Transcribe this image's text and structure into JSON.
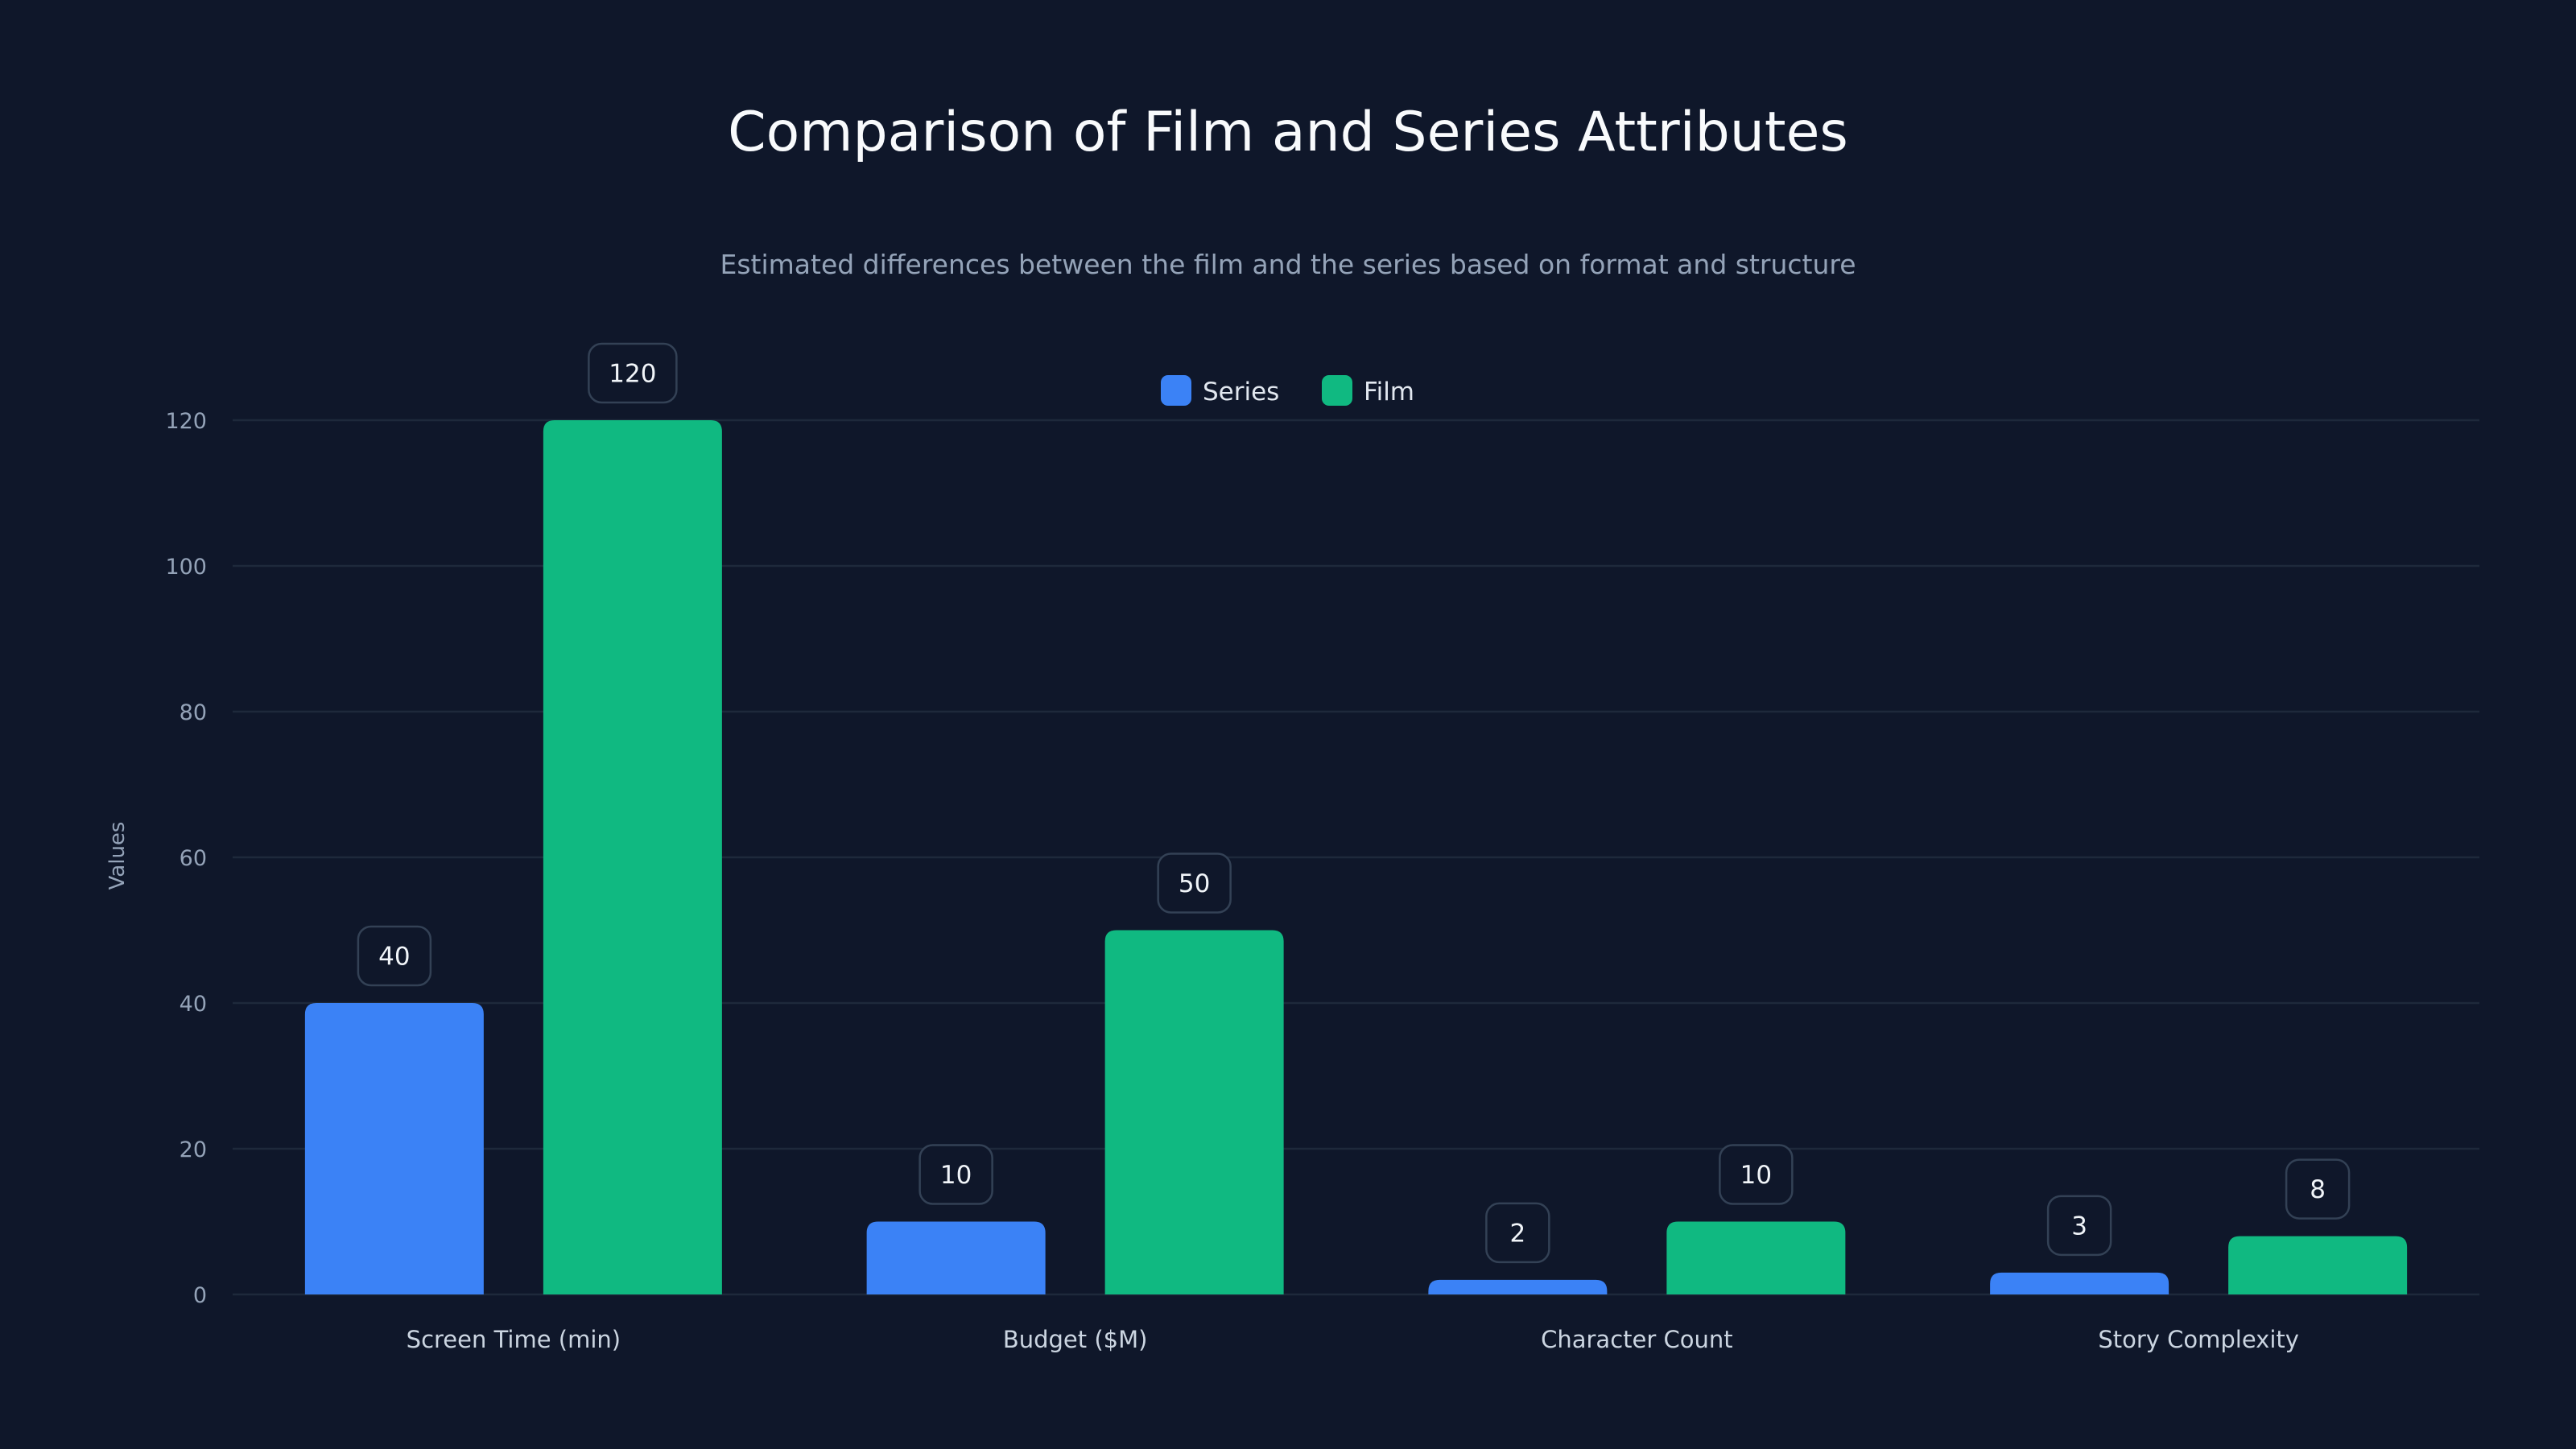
{
  "chart_data": {
    "type": "bar",
    "title": "Comparison of Film and Series Attributes",
    "subtitle": "Estimated differences between the film and the series based on format and structure",
    "xlabel": "",
    "ylabel": "Values",
    "ylim": [
      0,
      120
    ],
    "yticks": [
      0,
      20,
      40,
      60,
      80,
      100,
      120
    ],
    "grid": true,
    "legend_position": "top-center",
    "categories": [
      "Screen Time (min)",
      "Budget ($M)",
      "Character Count",
      "Story Complexity"
    ],
    "series": [
      {
        "name": "Series",
        "color": "#3b82f6",
        "values": [
          40,
          10,
          2,
          3
        ]
      },
      {
        "name": "Film",
        "color": "#10b981",
        "values": [
          120,
          50,
          10,
          8
        ]
      }
    ]
  }
}
